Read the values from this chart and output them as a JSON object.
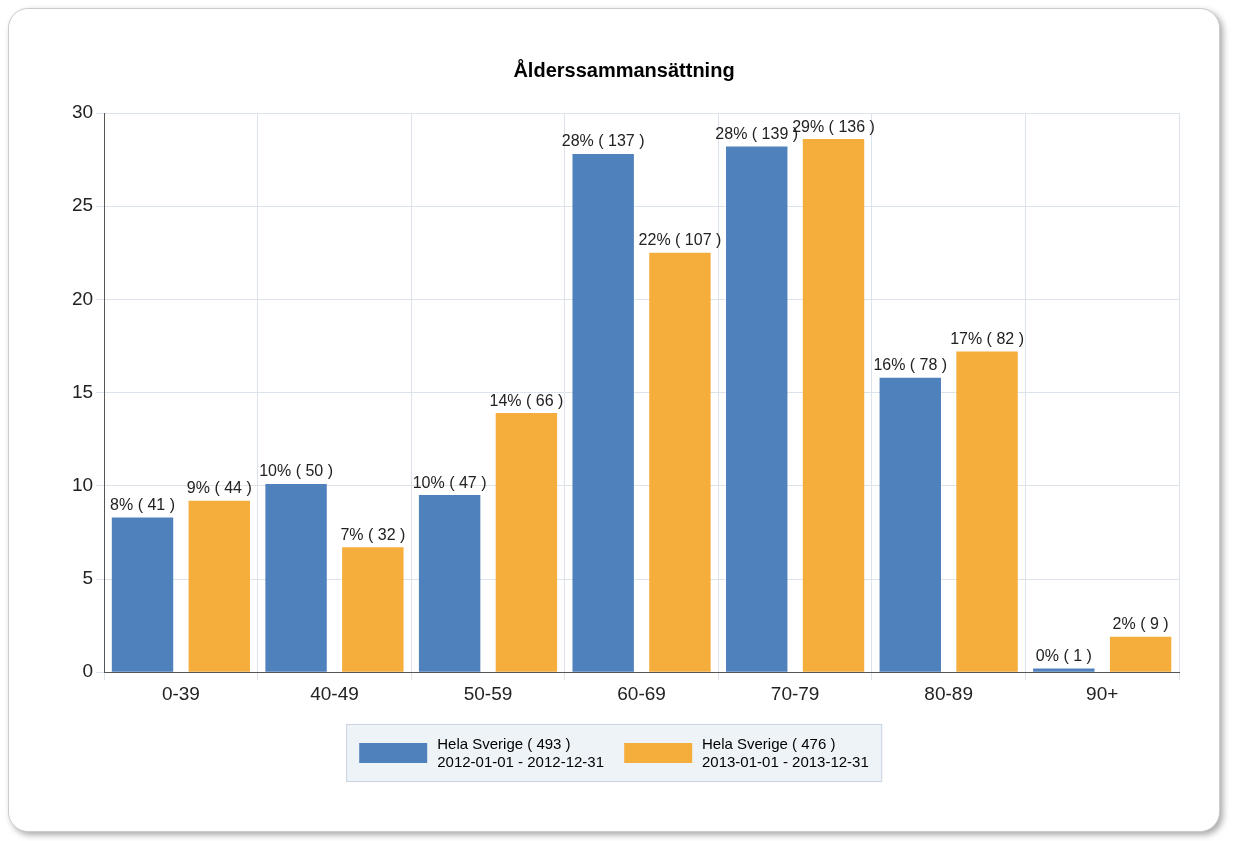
{
  "chart_data": {
    "type": "bar",
    "title": "Ålderssammansättning",
    "categories": [
      "0-39",
      "40-49",
      "50-59",
      "60-69",
      "70-79",
      "80-89",
      "90+"
    ],
    "series": [
      {
        "name": "Hela Sverige  ( 493 )\n2012-01-01 - 2012-12-31",
        "color": "#4f81bd",
        "values": [
          8.3,
          10.1,
          9.5,
          27.8,
          28.2,
          15.8,
          0.2
        ],
        "value_labels": [
          "8% ( 41 )",
          "10% ( 50 )",
          "10% ( 47 )",
          "28% ( 137 )",
          "28% ( 139 )",
          "16% ( 78 )",
          "0% ( 1 )"
        ]
      },
      {
        "name": "Hela Sverige  ( 476 )\n2013-01-01 - 2013-12-31",
        "color": "#f5ad3c",
        "values": [
          9.2,
          6.7,
          13.9,
          22.5,
          28.6,
          17.2,
          1.9
        ],
        "value_labels": [
          "9% ( 44 )",
          "7% ( 32 )",
          "14% ( 66 )",
          "22% ( 107 )",
          "29% ( 136 )",
          "17% ( 82 )",
          "2% ( 9 )"
        ]
      }
    ],
    "ylim": [
      0,
      30
    ],
    "yticks": [
      0,
      5,
      10,
      15,
      20,
      25,
      30
    ],
    "grid": true,
    "legend": "bottom"
  }
}
